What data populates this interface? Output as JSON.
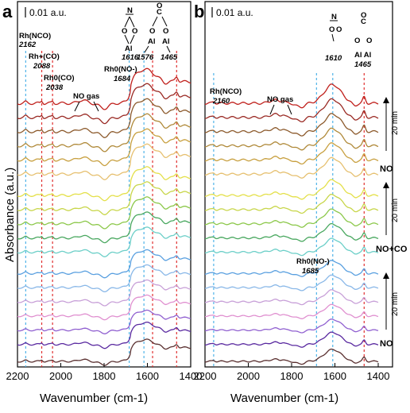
{
  "chart_data": [
    {
      "type": "line",
      "panel": "a",
      "scale_bar": "0.01 a.u.",
      "xlabel": "Wavenumber (cm-1)",
      "ylabel": "Absorbance (a.u.)",
      "xlim": [
        2200,
        1400
      ],
      "xticks": [
        2200,
        2000,
        1800,
        1600,
        1400
      ],
      "reference_lines": [
        {
          "x": 2162,
          "color": "#4fb3e8"
        },
        {
          "x": 2088,
          "color": "#e03030"
        },
        {
          "x": 2038,
          "color": "#e03030"
        },
        {
          "x": 1684,
          "color": "#4fb3e8"
        },
        {
          "x": 1616,
          "color": "#4fb3e8"
        },
        {
          "x": 1576,
          "color": "#e03030"
        },
        {
          "x": 1465,
          "color": "#e03030"
        }
      ],
      "annotations": [
        {
          "label": "Rh(NCO)",
          "value": "2162"
        },
        {
          "label": "Rh+(CO)",
          "value": "2088"
        },
        {
          "label": "Rh0(CO)",
          "value": "2038"
        },
        {
          "label": "NO gas",
          "value": ""
        },
        {
          "label": "Rh0(NO-)",
          "value": "1684"
        },
        {
          "label": "Al",
          "value": "1616"
        },
        {
          "label": "",
          "value": "1576"
        },
        {
          "label": "",
          "value": "1465"
        }
      ],
      "series_colors": [
        "#c0201c",
        "#9a2a24",
        "#8c5a2c",
        "#b08a3a",
        "#c8a040",
        "#e6c070",
        "#e4e04a",
        "#c8d64a",
        "#8cc84a",
        "#4aa860",
        "#6ccfc8",
        "#5aa0e0",
        "#8ab8e8",
        "#c8a0d8",
        "#e090d0",
        "#9060d0",
        "#5a2aa0",
        "#5a3030"
      ],
      "offsets": [
        17,
        16,
        15,
        14,
        13,
        12,
        10.5,
        9.5,
        8.5,
        7.5,
        6.5,
        5,
        4,
        3,
        2,
        1,
        0,
        -1.2
      ]
    },
    {
      "type": "line",
      "panel": "b",
      "scale_bar": "0.01 a.u.",
      "xlabel": "Wavenumber (cm-1)",
      "xlim": [
        2200,
        1400
      ],
      "xticks": [
        2200,
        2000,
        1800,
        1600,
        1400
      ],
      "reference_lines": [
        {
          "x": 2160,
          "color": "#4fb3e8"
        },
        {
          "x": 1685,
          "color": "#4fb3e8"
        },
        {
          "x": 1610,
          "color": "#4fb3e8"
        },
        {
          "x": 1465,
          "color": "#e03030"
        }
      ],
      "annotations": [
        {
          "label": "Rh(NCO)",
          "value": "2160"
        },
        {
          "label": "NO gas",
          "value": ""
        },
        {
          "label": "",
          "value": "1610"
        },
        {
          "label": "Al   Al",
          "value": "1465"
        },
        {
          "label": "Rh0(NO-)",
          "value": "1685"
        }
      ],
      "side_labels": [
        "NO",
        "NO+CO",
        "NO"
      ],
      "time_labels": [
        "20 min",
        "20 min",
        "20 min"
      ],
      "series_colors": [
        "#c0201c",
        "#9a2a24",
        "#8c5a2c",
        "#b08a3a",
        "#c8a040",
        "#e6c070",
        "#e4e04a",
        "#c8d64a",
        "#8cc84a",
        "#4aa860",
        "#6ccfc8",
        "#5aa0e0",
        "#8ab8e8",
        "#c8a0d8",
        "#e090d0",
        "#9060d0",
        "#5a2aa0",
        "#5a3030"
      ],
      "offsets": [
        17,
        16,
        15,
        14,
        13,
        12,
        10.5,
        9.5,
        8.5,
        7.5,
        6.5,
        5,
        4,
        3,
        2,
        1,
        0,
        -1.2
      ]
    }
  ]
}
